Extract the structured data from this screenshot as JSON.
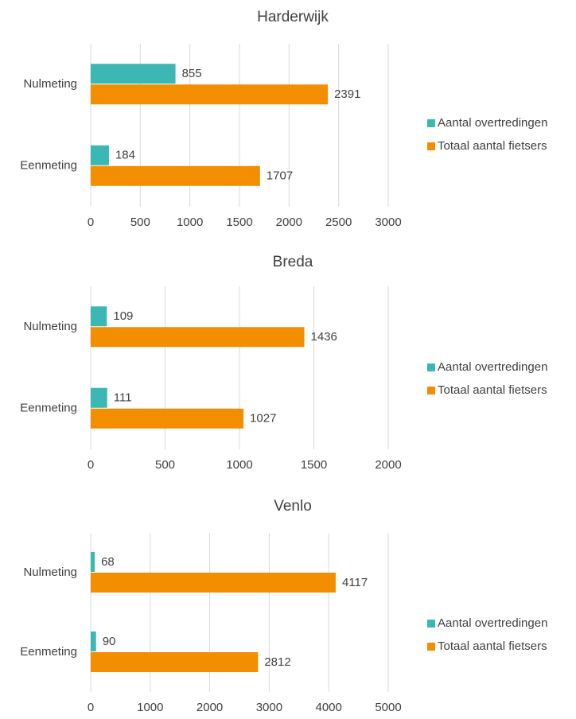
{
  "chart_data": [
    {
      "type": "bar",
      "orientation": "horizontal",
      "title": "Harderwijk",
      "categories": [
        "Nulmeting",
        "Eenmeting"
      ],
      "series": [
        {
          "name": "Aantal overtredingen",
          "color": "#3bb8b3",
          "values": [
            855,
            184
          ]
        },
        {
          "name": "Totaal aantal fietsers",
          "color": "#f28e00",
          "values": [
            2391,
            1707
          ]
        }
      ],
      "xlim": [
        0,
        3000
      ],
      "xticks": [
        0,
        500,
        1000,
        1500,
        2000,
        2500,
        3000
      ],
      "grid": true,
      "legend": "right"
    },
    {
      "type": "bar",
      "orientation": "horizontal",
      "title": "Breda",
      "categories": [
        "Nulmeting",
        "Eenmeting"
      ],
      "series": [
        {
          "name": "Aantal overtredingen",
          "color": "#3bb8b3",
          "values": [
            109,
            111
          ]
        },
        {
          "name": "Totaal aantal fietsers",
          "color": "#f28e00",
          "values": [
            1436,
            1027
          ]
        }
      ],
      "xlim": [
        0,
        2000
      ],
      "xticks": [
        0,
        500,
        1000,
        1500,
        2000
      ],
      "grid": true,
      "legend": "right"
    },
    {
      "type": "bar",
      "orientation": "horizontal",
      "title": "Venlo",
      "categories": [
        "Nulmeting",
        "Eenmeting"
      ],
      "series": [
        {
          "name": "Aantal overtredingen",
          "color": "#3bb8b3",
          "values": [
            68,
            90
          ]
        },
        {
          "name": "Totaal aantal fietsers",
          "color": "#f28e00",
          "values": [
            4117,
            2812
          ]
        }
      ],
      "xlim": [
        0,
        5000
      ],
      "xticks": [
        0,
        1000,
        2000,
        3000,
        4000,
        5000
      ],
      "grid": true,
      "legend": "right"
    }
  ]
}
